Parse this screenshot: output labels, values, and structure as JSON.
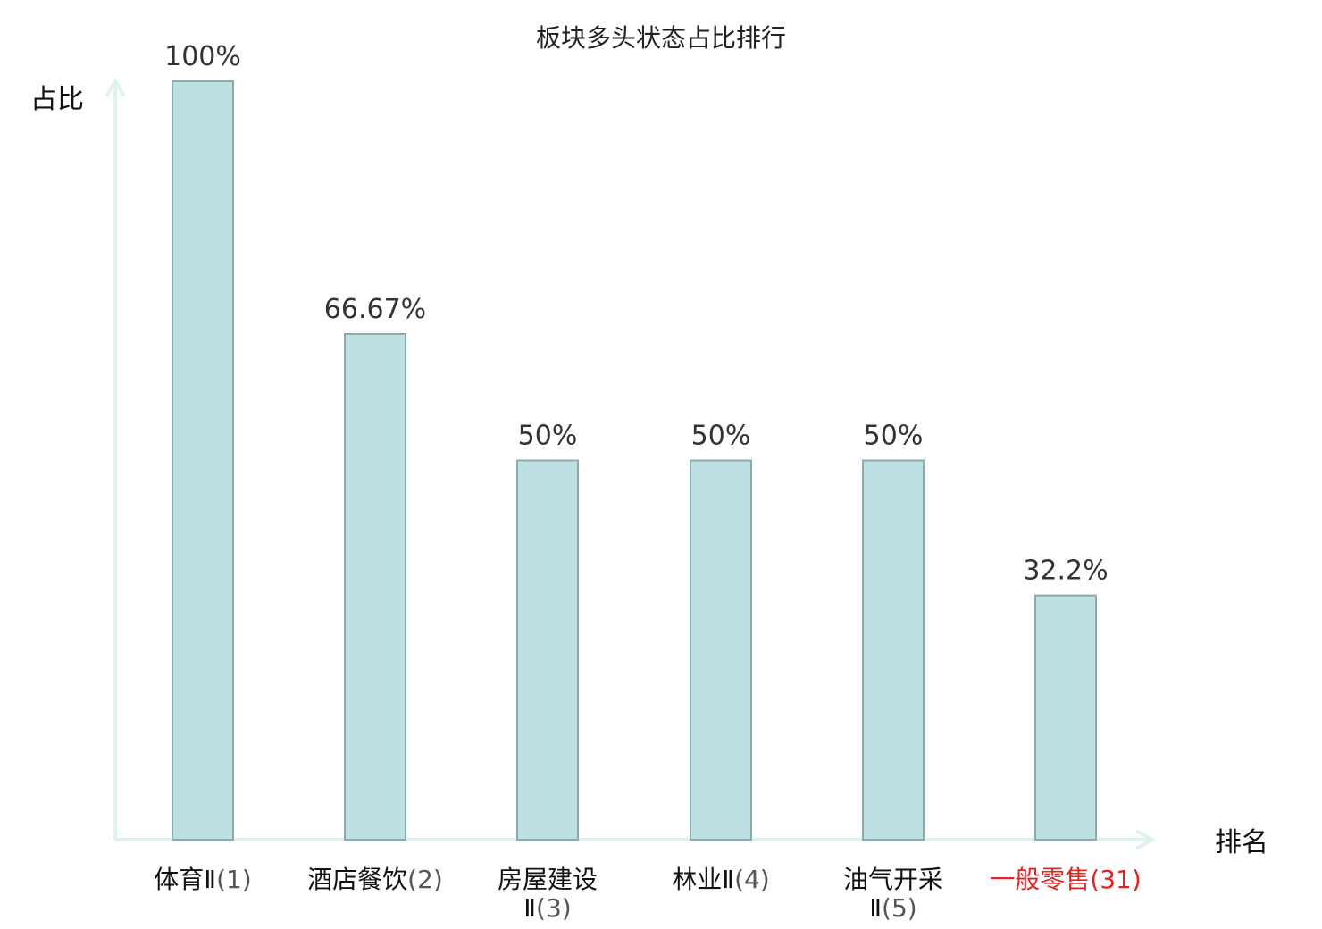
{
  "chart_data": {
    "type": "bar",
    "title": "板块多头状态占比排行",
    "ylabel": "占比",
    "xlabel": "排名",
    "ylim": [
      0,
      100
    ],
    "grid": false,
    "categories": [
      {
        "name": "体育Ⅱ",
        "rank": "(1)",
        "highlight": false
      },
      {
        "name": "酒店餐饮",
        "rank": "(2)",
        "highlight": false
      },
      {
        "name": "房屋建设Ⅱ",
        "rank": "(3)",
        "highlight": false
      },
      {
        "name": "林业Ⅱ",
        "rank": "(4)",
        "highlight": false
      },
      {
        "name": "油气开采Ⅱ",
        "rank": "(5)",
        "highlight": false
      },
      {
        "name": "一般零售",
        "rank": "(31)",
        "highlight": true
      }
    ],
    "values": [
      100,
      66.67,
      50,
      50,
      50,
      32.2
    ],
    "value_labels": [
      "100%",
      "66.67%",
      "50%",
      "50%",
      "50%",
      "32.2%"
    ]
  },
  "colors": {
    "bar_fill": "#bde0e3",
    "bar_stroke": "#8aabaf",
    "axis": "#dff2ef",
    "highlight": "#e02424"
  }
}
